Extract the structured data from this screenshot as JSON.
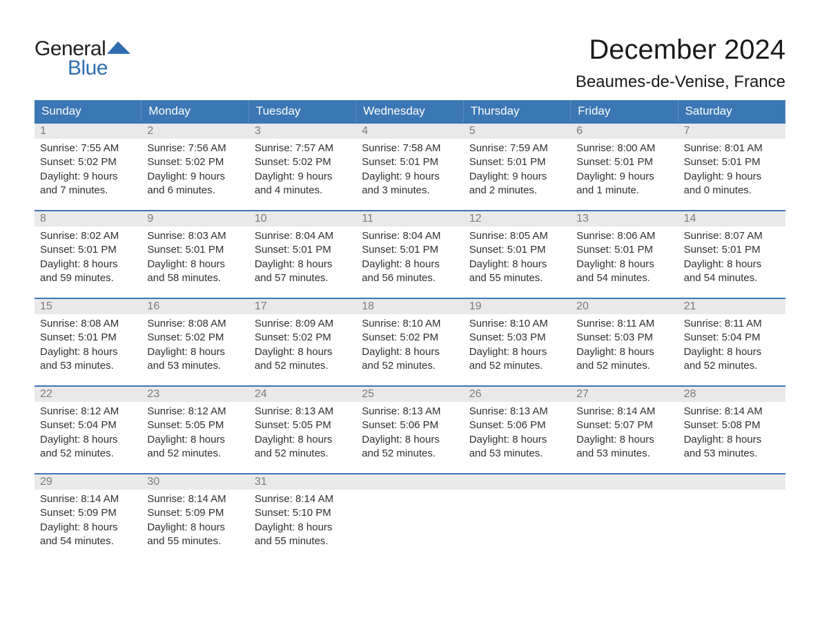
{
  "logo": {
    "word1": "General",
    "word2": "Blue"
  },
  "title": "December 2024",
  "location": "Beaumes-de-Venise, France",
  "colors": {
    "header_bg": "#3b76b5",
    "header_text": "#ffffff",
    "week_rule": "#3b76b5",
    "daynum_bg": "#e9e9e9",
    "daynum_text": "#7a7a7a",
    "body_text": "#2f2f2f",
    "logo_blue": "#2f6db0",
    "background": "#ffffff"
  },
  "typography": {
    "title_size_pt": 30,
    "location_size_pt": 18,
    "header_size_pt": 13,
    "cell_size_pt": 11
  },
  "structure": {
    "type": "calendar",
    "columns": 7,
    "rows": 5
  },
  "day_headers": [
    "Sunday",
    "Monday",
    "Tuesday",
    "Wednesday",
    "Thursday",
    "Friday",
    "Saturday"
  ],
  "weeks": [
    {
      "days": [
        {
          "num": "1",
          "sunrise": "Sunrise: 7:55 AM",
          "sunset": "Sunset: 5:02 PM",
          "d1": "Daylight: 9 hours",
          "d2": "and 7 minutes."
        },
        {
          "num": "2",
          "sunrise": "Sunrise: 7:56 AM",
          "sunset": "Sunset: 5:02 PM",
          "d1": "Daylight: 9 hours",
          "d2": "and 6 minutes."
        },
        {
          "num": "3",
          "sunrise": "Sunrise: 7:57 AM",
          "sunset": "Sunset: 5:02 PM",
          "d1": "Daylight: 9 hours",
          "d2": "and 4 minutes."
        },
        {
          "num": "4",
          "sunrise": "Sunrise: 7:58 AM",
          "sunset": "Sunset: 5:01 PM",
          "d1": "Daylight: 9 hours",
          "d2": "and 3 minutes."
        },
        {
          "num": "5",
          "sunrise": "Sunrise: 7:59 AM",
          "sunset": "Sunset: 5:01 PM",
          "d1": "Daylight: 9 hours",
          "d2": "and 2 minutes."
        },
        {
          "num": "6",
          "sunrise": "Sunrise: 8:00 AM",
          "sunset": "Sunset: 5:01 PM",
          "d1": "Daylight: 9 hours",
          "d2": "and 1 minute."
        },
        {
          "num": "7",
          "sunrise": "Sunrise: 8:01 AM",
          "sunset": "Sunset: 5:01 PM",
          "d1": "Daylight: 9 hours",
          "d2": "and 0 minutes."
        }
      ]
    },
    {
      "days": [
        {
          "num": "8",
          "sunrise": "Sunrise: 8:02 AM",
          "sunset": "Sunset: 5:01 PM",
          "d1": "Daylight: 8 hours",
          "d2": "and 59 minutes."
        },
        {
          "num": "9",
          "sunrise": "Sunrise: 8:03 AM",
          "sunset": "Sunset: 5:01 PM",
          "d1": "Daylight: 8 hours",
          "d2": "and 58 minutes."
        },
        {
          "num": "10",
          "sunrise": "Sunrise: 8:04 AM",
          "sunset": "Sunset: 5:01 PM",
          "d1": "Daylight: 8 hours",
          "d2": "and 57 minutes."
        },
        {
          "num": "11",
          "sunrise": "Sunrise: 8:04 AM",
          "sunset": "Sunset: 5:01 PM",
          "d1": "Daylight: 8 hours",
          "d2": "and 56 minutes."
        },
        {
          "num": "12",
          "sunrise": "Sunrise: 8:05 AM",
          "sunset": "Sunset: 5:01 PM",
          "d1": "Daylight: 8 hours",
          "d2": "and 55 minutes."
        },
        {
          "num": "13",
          "sunrise": "Sunrise: 8:06 AM",
          "sunset": "Sunset: 5:01 PM",
          "d1": "Daylight: 8 hours",
          "d2": "and 54 minutes."
        },
        {
          "num": "14",
          "sunrise": "Sunrise: 8:07 AM",
          "sunset": "Sunset: 5:01 PM",
          "d1": "Daylight: 8 hours",
          "d2": "and 54 minutes."
        }
      ]
    },
    {
      "days": [
        {
          "num": "15",
          "sunrise": "Sunrise: 8:08 AM",
          "sunset": "Sunset: 5:01 PM",
          "d1": "Daylight: 8 hours",
          "d2": "and 53 minutes."
        },
        {
          "num": "16",
          "sunrise": "Sunrise: 8:08 AM",
          "sunset": "Sunset: 5:02 PM",
          "d1": "Daylight: 8 hours",
          "d2": "and 53 minutes."
        },
        {
          "num": "17",
          "sunrise": "Sunrise: 8:09 AM",
          "sunset": "Sunset: 5:02 PM",
          "d1": "Daylight: 8 hours",
          "d2": "and 52 minutes."
        },
        {
          "num": "18",
          "sunrise": "Sunrise: 8:10 AM",
          "sunset": "Sunset: 5:02 PM",
          "d1": "Daylight: 8 hours",
          "d2": "and 52 minutes."
        },
        {
          "num": "19",
          "sunrise": "Sunrise: 8:10 AM",
          "sunset": "Sunset: 5:03 PM",
          "d1": "Daylight: 8 hours",
          "d2": "and 52 minutes."
        },
        {
          "num": "20",
          "sunrise": "Sunrise: 8:11 AM",
          "sunset": "Sunset: 5:03 PM",
          "d1": "Daylight: 8 hours",
          "d2": "and 52 minutes."
        },
        {
          "num": "21",
          "sunrise": "Sunrise: 8:11 AM",
          "sunset": "Sunset: 5:04 PM",
          "d1": "Daylight: 8 hours",
          "d2": "and 52 minutes."
        }
      ]
    },
    {
      "days": [
        {
          "num": "22",
          "sunrise": "Sunrise: 8:12 AM",
          "sunset": "Sunset: 5:04 PM",
          "d1": "Daylight: 8 hours",
          "d2": "and 52 minutes."
        },
        {
          "num": "23",
          "sunrise": "Sunrise: 8:12 AM",
          "sunset": "Sunset: 5:05 PM",
          "d1": "Daylight: 8 hours",
          "d2": "and 52 minutes."
        },
        {
          "num": "24",
          "sunrise": "Sunrise: 8:13 AM",
          "sunset": "Sunset: 5:05 PM",
          "d1": "Daylight: 8 hours",
          "d2": "and 52 minutes."
        },
        {
          "num": "25",
          "sunrise": "Sunrise: 8:13 AM",
          "sunset": "Sunset: 5:06 PM",
          "d1": "Daylight: 8 hours",
          "d2": "and 52 minutes."
        },
        {
          "num": "26",
          "sunrise": "Sunrise: 8:13 AM",
          "sunset": "Sunset: 5:06 PM",
          "d1": "Daylight: 8 hours",
          "d2": "and 53 minutes."
        },
        {
          "num": "27",
          "sunrise": "Sunrise: 8:14 AM",
          "sunset": "Sunset: 5:07 PM",
          "d1": "Daylight: 8 hours",
          "d2": "and 53 minutes."
        },
        {
          "num": "28",
          "sunrise": "Sunrise: 8:14 AM",
          "sunset": "Sunset: 5:08 PM",
          "d1": "Daylight: 8 hours",
          "d2": "and 53 minutes."
        }
      ]
    },
    {
      "days": [
        {
          "num": "29",
          "sunrise": "Sunrise: 8:14 AM",
          "sunset": "Sunset: 5:09 PM",
          "d1": "Daylight: 8 hours",
          "d2": "and 54 minutes."
        },
        {
          "num": "30",
          "sunrise": "Sunrise: 8:14 AM",
          "sunset": "Sunset: 5:09 PM",
          "d1": "Daylight: 8 hours",
          "d2": "and 55 minutes."
        },
        {
          "num": "31",
          "sunrise": "Sunrise: 8:14 AM",
          "sunset": "Sunset: 5:10 PM",
          "d1": "Daylight: 8 hours",
          "d2": "and 55 minutes."
        },
        null,
        null,
        null,
        null
      ]
    }
  ]
}
